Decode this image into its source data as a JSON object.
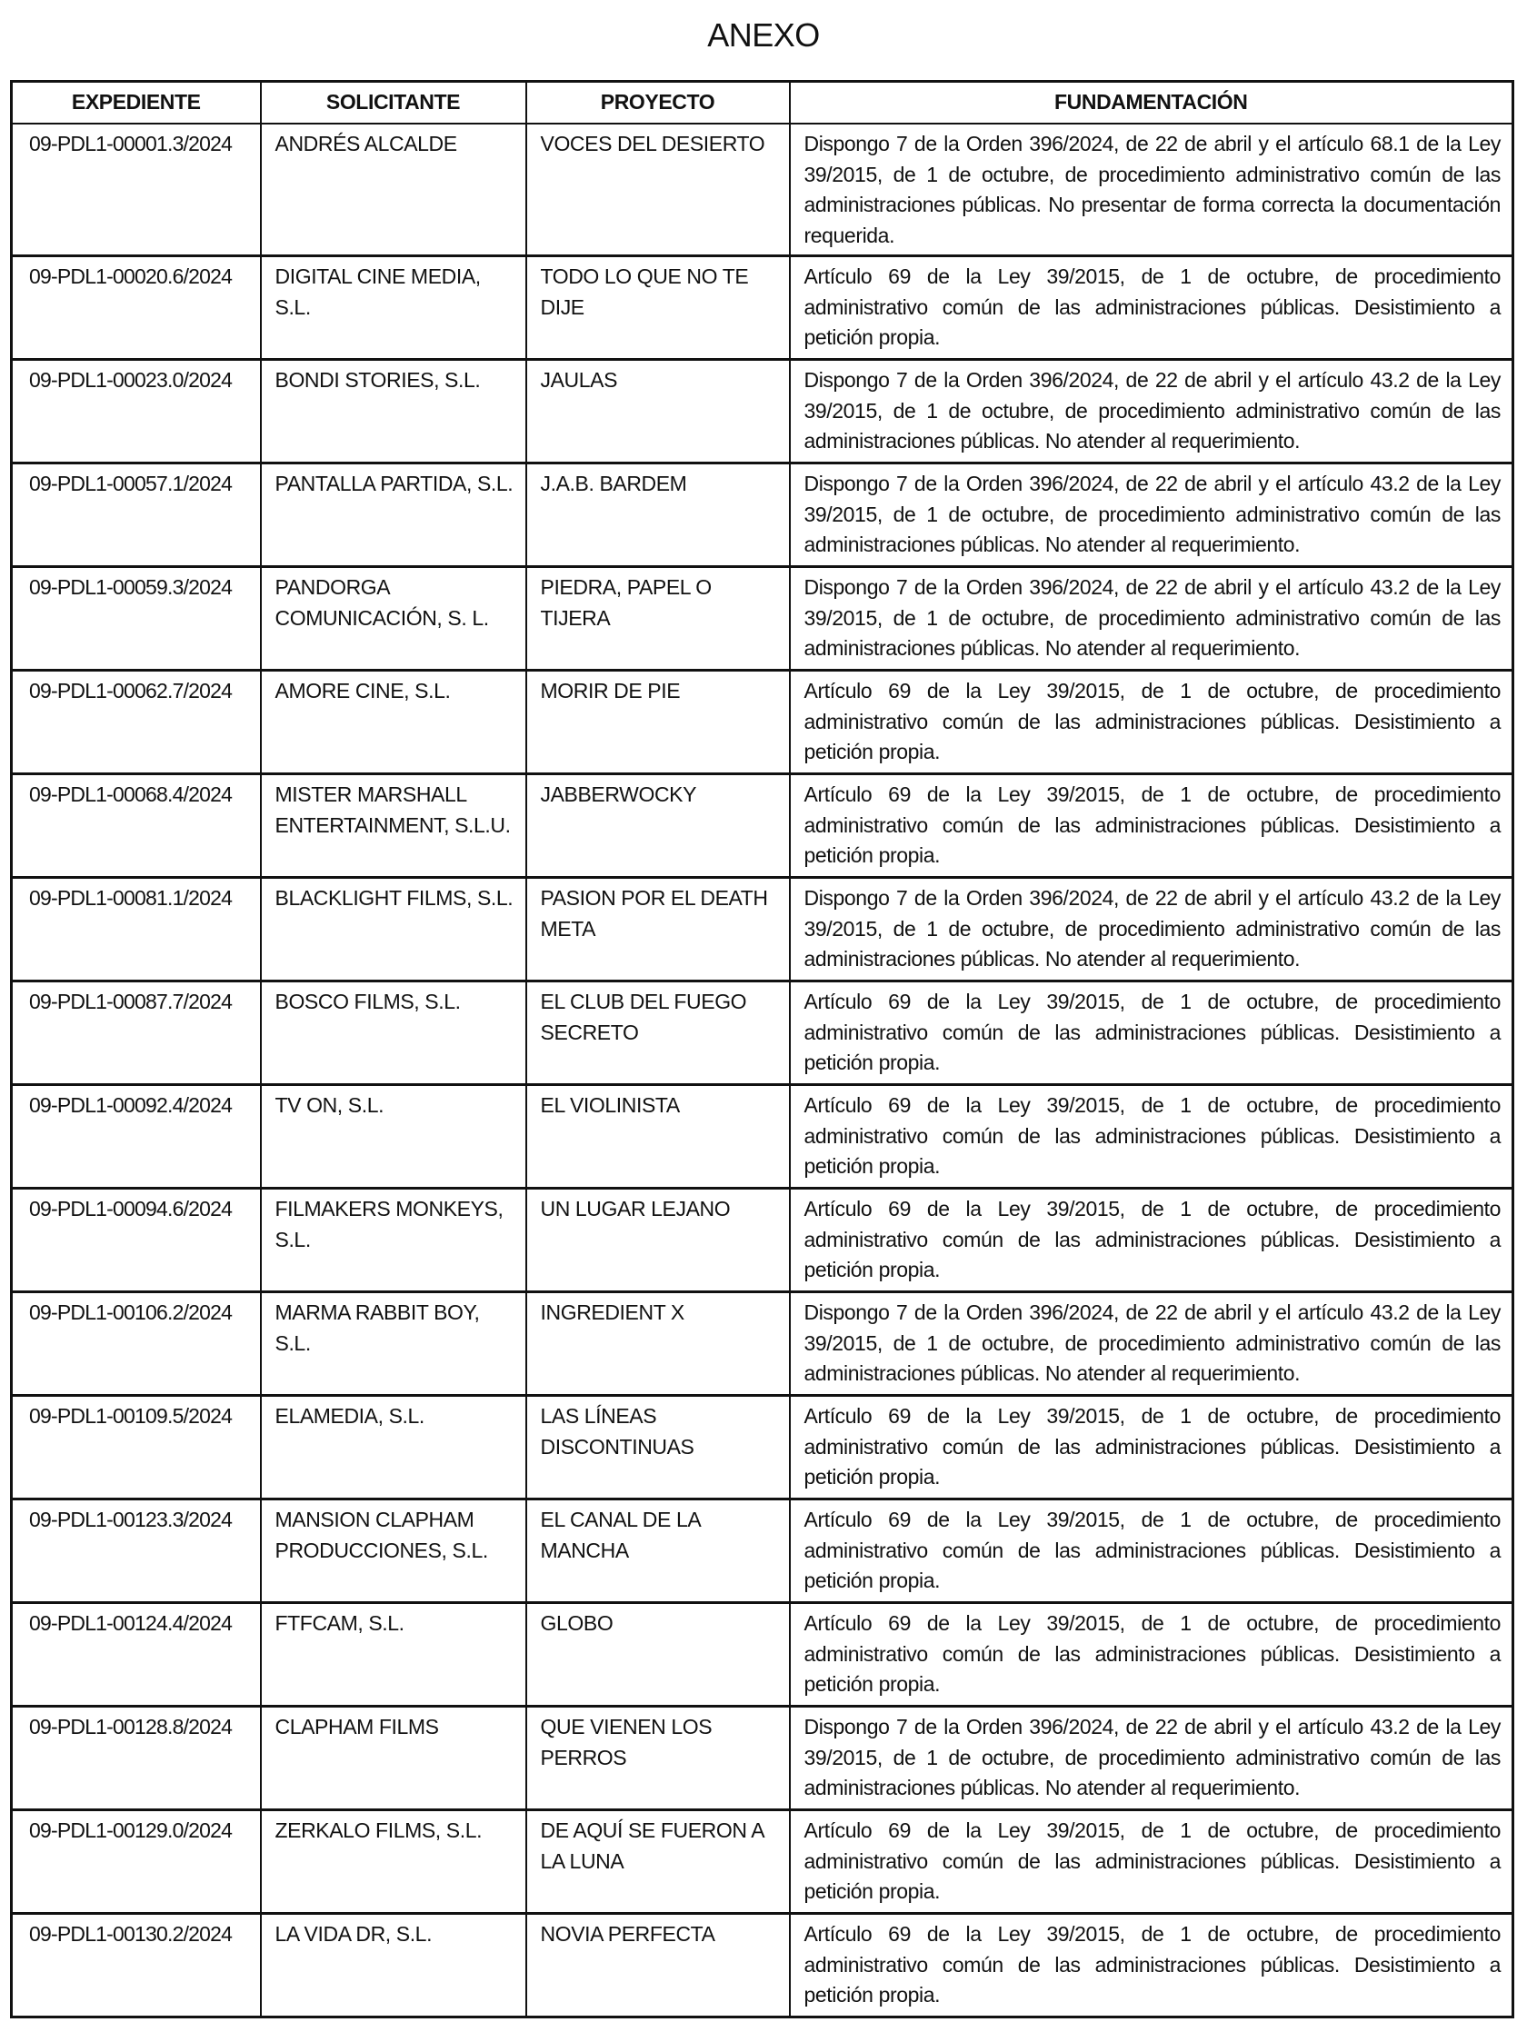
{
  "title": "ANEXO",
  "headers": [
    "EXPEDIENTE",
    "SOLICITANTE",
    "PROYECTO",
    "FUNDAMENTACIÓN"
  ],
  "rows": [
    {
      "expediente": "09-PDL1-00001.3/2024",
      "solicitante": "ANDRÉS ALCALDE",
      "proyecto": "VOCES DEL DESIERTO",
      "fundamentacion": "Dispongo 7 de la Orden 396/2024, de 22 de abril y el artículo 68.1 de la Ley 39/2015, de 1 de octubre, de procedimiento administrativo común de las administraciones públicas. No presentar de forma correcta la documentación requerida."
    },
    {
      "expediente": "09-PDL1-00020.6/2024",
      "solicitante": "DIGITAL CINE MEDIA, S.L.",
      "proyecto": "TODO LO QUE NO TE DIJE",
      "fundamentacion": "Artículo 69 de la Ley 39/2015, de 1 de octubre, de procedimiento administrativo común de las administraciones públicas. Desistimiento a petición propia."
    },
    {
      "expediente": "09-PDL1-00023.0/2024",
      "solicitante": "BONDI STORIES, S.L.",
      "proyecto": "JAULAS",
      "fundamentacion": "Dispongo 7 de la Orden 396/2024, de 22 de abril y el artículo 43.2 de la Ley 39/2015, de 1 de octubre, de procedimiento administrativo común de las administraciones públicas. No atender al requerimiento."
    },
    {
      "expediente": "09-PDL1-00057.1/2024",
      "solicitante": "PANTALLA PARTIDA, S.L.",
      "proyecto": "J.A.B. BARDEM",
      "fundamentacion": "Dispongo 7 de la Orden 396/2024, de 22 de abril y el artículo 43.2 de la Ley 39/2015, de 1 de octubre, de procedimiento administrativo común de las administraciones públicas. No atender al requerimiento."
    },
    {
      "expediente": "09-PDL1-00059.3/2024",
      "solicitante": "PANDORGA COMUNICACIÓN, S. L.",
      "proyecto": "PIEDRA, PAPEL O TIJERA",
      "fundamentacion": "Dispongo 7 de la Orden 396/2024, de 22 de abril y el artículo 43.2 de la Ley 39/2015, de 1 de octubre, de procedimiento administrativo común de las administraciones públicas. No atender al requerimiento."
    },
    {
      "expediente": "09-PDL1-00062.7/2024",
      "solicitante": "AMORE CINE, S.L.",
      "proyecto": "MORIR DE PIE",
      "fundamentacion": "Artículo 69 de la Ley 39/2015, de 1 de octubre, de procedimiento administrativo común de las administraciones públicas. Desistimiento a petición propia."
    },
    {
      "expediente": "09-PDL1-00068.4/2024",
      "solicitante": "MISTER MARSHALL ENTERTAINMENT, S.L.U.",
      "proyecto": "JABBERWOCKY",
      "fundamentacion": "Artículo 69 de la Ley 39/2015, de 1 de octubre, de procedimiento administrativo común de las administraciones públicas. Desistimiento a petición propia."
    },
    {
      "expediente": "09-PDL1-00081.1/2024",
      "solicitante": "BLACKLIGHT FILMS, S.L.",
      "proyecto": "PASION POR EL DEATH META",
      "fundamentacion": "Dispongo 7 de la Orden 396/2024, de 22 de abril y el artículo 43.2 de la Ley 39/2015, de 1 de octubre, de procedimiento administrativo común de las administraciones públicas. No atender al requerimiento."
    },
    {
      "expediente": "09-PDL1-00087.7/2024",
      "solicitante": "BOSCO FILMS, S.L.",
      "proyecto": "EL CLUB DEL FUEGO SECRETO",
      "fundamentacion": "Artículo 69 de la Ley 39/2015, de 1 de octubre, de procedimiento administrativo común de las administraciones públicas. Desistimiento a petición propia."
    },
    {
      "expediente": "09-PDL1-00092.4/2024",
      "solicitante": "TV ON, S.L.",
      "proyecto": "EL VIOLINISTA",
      "fundamentacion": "Artículo 69 de la Ley 39/2015, de 1 de octubre, de procedimiento administrativo común de las administraciones públicas. Desistimiento a petición propia."
    },
    {
      "expediente": "09-PDL1-00094.6/2024",
      "solicitante": "FILMAKERS MONKEYS, S.L.",
      "proyecto": "UN LUGAR LEJANO",
      "fundamentacion": "Artículo 69 de la Ley 39/2015, de 1 de octubre, de procedimiento administrativo común de las administraciones públicas. Desistimiento a petición propia."
    },
    {
      "expediente": "09-PDL1-00106.2/2024",
      "solicitante": "MARMA RABBIT BOY, S.L.",
      "proyecto": "INGREDIENT X",
      "fundamentacion": "Dispongo 7 de la Orden 396/2024, de 22 de abril y el artículo 43.2 de la Ley 39/2015, de 1 de octubre, de procedimiento administrativo común de las administraciones públicas. No atender al requerimiento."
    },
    {
      "expediente": "09-PDL1-00109.5/2024",
      "solicitante": "ELAMEDIA, S.L.",
      "proyecto": "LAS LÍNEAS DISCONTINUAS",
      "fundamentacion": "Artículo 69 de la Ley 39/2015, de 1 de octubre, de procedimiento administrativo común de las administraciones públicas. Desistimiento a petición propia."
    },
    {
      "expediente": "09-PDL1-00123.3/2024",
      "solicitante": "MANSION CLAPHAM PRODUCCIONES, S.L.",
      "proyecto": "EL CANAL DE LA MANCHA",
      "fundamentacion": "Artículo 69 de la Ley 39/2015, de 1 de octubre, de procedimiento administrativo común de las administraciones públicas. Desistimiento a petición propia."
    },
    {
      "expediente": "09-PDL1-00124.4/2024",
      "solicitante": "FTFCAM, S.L.",
      "proyecto": "GLOBO",
      "fundamentacion": "Artículo 69 de la Ley 39/2015, de 1 de octubre, de procedimiento administrativo común de las administraciones públicas. Desistimiento a petición propia."
    },
    {
      "expediente": "09-PDL1-00128.8/2024",
      "solicitante": "CLAPHAM FILMS",
      "proyecto": "QUE VIENEN LOS PERROS",
      "fundamentacion": "Dispongo 7 de la Orden 396/2024, de 22 de abril y el artículo 43.2 de la Ley 39/2015, de 1 de octubre, de procedimiento administrativo común de las administraciones públicas. No atender al requerimiento."
    },
    {
      "expediente": "09-PDL1-00129.0/2024",
      "solicitante": "ZERKALO FILMS, S.L.",
      "proyecto": "DE AQUÍ SE FUERON A LA LUNA",
      "fundamentacion": "Artículo 69 de la Ley 39/2015, de 1 de octubre, de procedimiento administrativo común de las administraciones públicas. Desistimiento a petición propia."
    },
    {
      "expediente": "09-PDL1-00130.2/2024",
      "solicitante": "LA VIDA DR, S.L.",
      "proyecto": "NOVIA PERFECTA",
      "fundamentacion": "Artículo 69 de la Ley 39/2015, de 1 de octubre, de procedimiento administrativo común de las administraciones públicas. Desistimiento a petición propia."
    }
  ]
}
